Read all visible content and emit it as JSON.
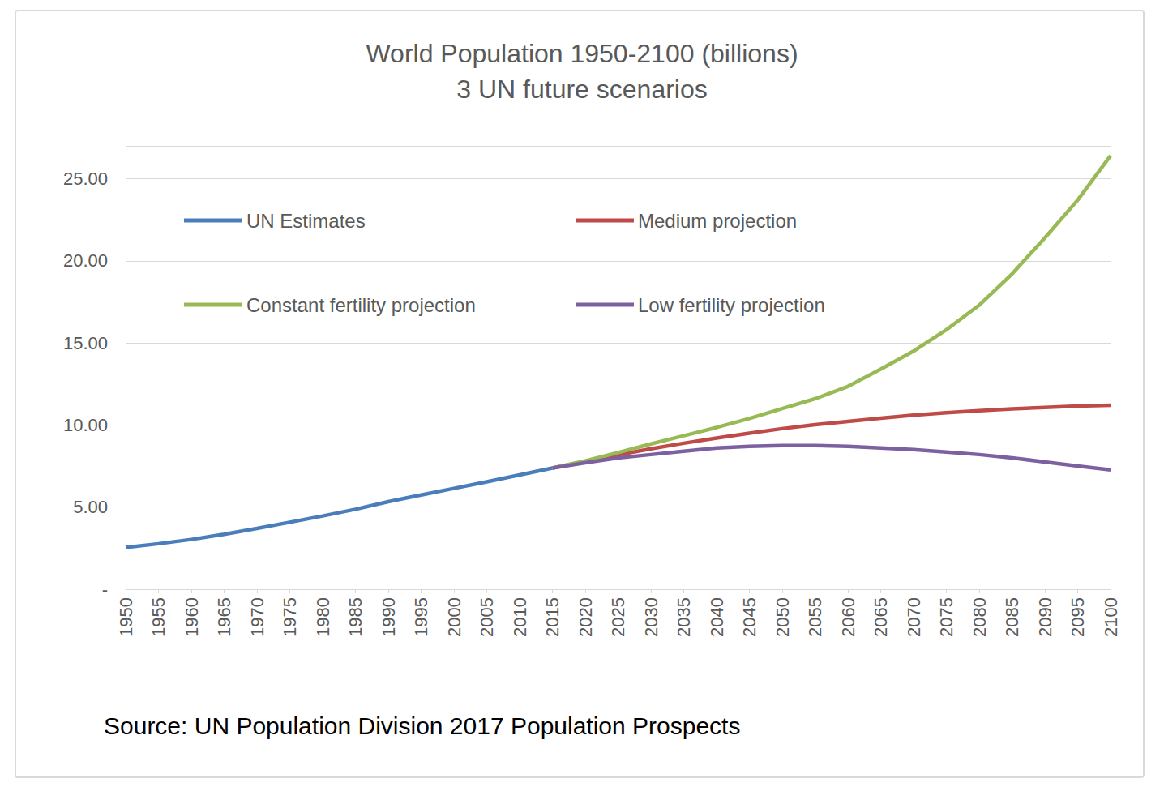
{
  "chart_data": {
    "type": "line",
    "title": "World Population 1950-2100 (billions)",
    "subtitle": "3 UN future scenarios",
    "annotations": [
      "Source: UN Population Division 2017 Population Prospects"
    ],
    "categories": [
      "1950",
      "1955",
      "1960",
      "1965",
      "1970",
      "1975",
      "1980",
      "1985",
      "1990",
      "1995",
      "2000",
      "2005",
      "2010",
      "2015",
      "2020",
      "2025",
      "2030",
      "2035",
      "2040",
      "2045",
      "2050",
      "2055",
      "2060",
      "2065",
      "2070",
      "2075",
      "2080",
      "2085",
      "2090",
      "2095",
      "2100"
    ],
    "series": [
      {
        "name": "UN Estimates",
        "color": "#4a7ebb",
        "values": [
          2.54,
          2.77,
          3.03,
          3.34,
          3.7,
          4.08,
          4.46,
          4.87,
          5.33,
          5.74,
          6.14,
          6.54,
          6.96,
          7.38,
          null,
          null,
          null,
          null,
          null,
          null,
          null,
          null,
          null,
          null,
          null,
          null,
          null,
          null,
          null,
          null,
          null
        ]
      },
      {
        "name": "Medium projection",
        "color": "#be4b48",
        "values": [
          null,
          null,
          null,
          null,
          null,
          null,
          null,
          null,
          null,
          null,
          null,
          null,
          null,
          7.38,
          7.79,
          8.18,
          8.55,
          8.89,
          9.21,
          9.5,
          9.78,
          10.02,
          10.22,
          10.42,
          10.6,
          10.75,
          10.87,
          10.98,
          11.07,
          11.15,
          11.2
        ]
      },
      {
        "name": "Constant fertility projection",
        "color": "#98b954",
        "values": [
          null,
          null,
          null,
          null,
          null,
          null,
          null,
          null,
          null,
          null,
          null,
          null,
          null,
          7.38,
          7.82,
          8.32,
          8.85,
          9.35,
          9.85,
          10.4,
          11.0,
          11.6,
          12.35,
          13.4,
          14.5,
          15.8,
          17.3,
          19.2,
          21.4,
          23.7,
          26.4
        ]
      },
      {
        "name": "Low fertility projection",
        "color": "#7d60a0",
        "values": [
          null,
          null,
          null,
          null,
          null,
          null,
          null,
          null,
          null,
          null,
          null,
          null,
          null,
          7.38,
          7.7,
          8.0,
          8.2,
          8.4,
          8.6,
          8.7,
          8.75,
          8.75,
          8.7,
          8.6,
          8.5,
          8.35,
          8.2,
          8.0,
          7.75,
          7.5,
          7.27
        ]
      }
    ],
    "ylim": [
      0,
      27
    ],
    "yticks": [
      {
        "value": 0,
        "label": "-"
      },
      {
        "value": 5,
        "label": "5.00"
      },
      {
        "value": 10,
        "label": "10.00"
      },
      {
        "value": 15,
        "label": "15.00"
      },
      {
        "value": 20,
        "label": "20.00"
      },
      {
        "value": 25,
        "label": "25.00"
      }
    ],
    "grid": true,
    "legend": "upper left"
  }
}
